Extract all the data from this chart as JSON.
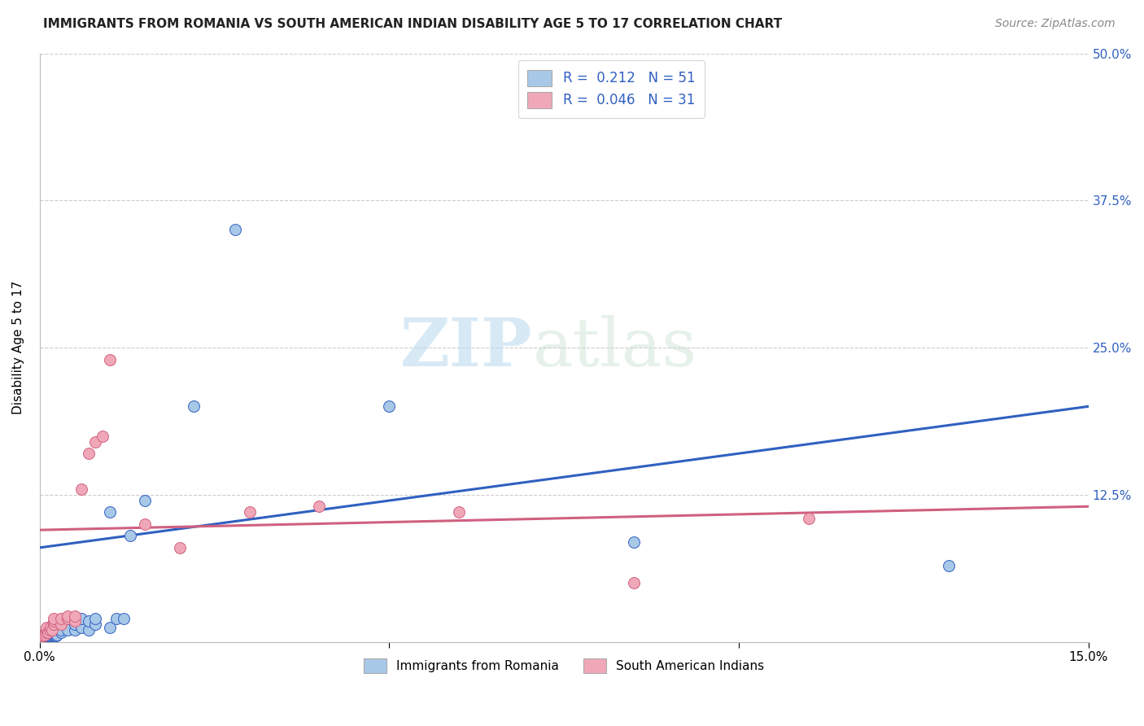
{
  "title": "IMMIGRANTS FROM ROMANIA VS SOUTH AMERICAN INDIAN DISABILITY AGE 5 TO 17 CORRELATION CHART",
  "source": "Source: ZipAtlas.com",
  "ylabel": "Disability Age 5 to 17",
  "xlim": [
    0.0,
    0.15
  ],
  "ylim": [
    0.0,
    0.5
  ],
  "xticks": [
    0.0,
    0.05,
    0.1,
    0.15
  ],
  "xticklabels": [
    "0.0%",
    "",
    "",
    "15.0%"
  ],
  "yticks": [
    0.0,
    0.125,
    0.25,
    0.375,
    0.5
  ],
  "yticklabels": [
    "",
    "12.5%",
    "25.0%",
    "37.5%",
    "50.0%"
  ],
  "color_romania": "#a8c8e8",
  "color_sa_indian": "#f0a8b8",
  "line_color_romania": "#3060c0",
  "line_color_sa_indian": "#d06080",
  "background_color": "#ffffff",
  "watermark_zip": "ZIP",
  "watermark_atlas": "atlas",
  "romania_x": [
    0.0003,
    0.0004,
    0.0005,
    0.0006,
    0.0007,
    0.0008,
    0.0009,
    0.001,
    0.001,
    0.001,
    0.001,
    0.0012,
    0.0013,
    0.0014,
    0.0015,
    0.0015,
    0.0016,
    0.0017,
    0.0018,
    0.0019,
    0.002,
    0.002,
    0.002,
    0.002,
    0.0022,
    0.0024,
    0.0025,
    0.003,
    0.003,
    0.003,
    0.004,
    0.004,
    0.005,
    0.005,
    0.006,
    0.006,
    0.007,
    0.007,
    0.008,
    0.008,
    0.01,
    0.01,
    0.011,
    0.012,
    0.013,
    0.015,
    0.022,
    0.028,
    0.05,
    0.085,
    0.13
  ],
  "romania_y": [
    0.005,
    0.005,
    0.005,
    0.005,
    0.005,
    0.006,
    0.005,
    0.005,
    0.006,
    0.007,
    0.008,
    0.005,
    0.005,
    0.005,
    0.006,
    0.007,
    0.005,
    0.006,
    0.005,
    0.006,
    0.006,
    0.007,
    0.008,
    0.01,
    0.005,
    0.005,
    0.006,
    0.008,
    0.01,
    0.018,
    0.01,
    0.02,
    0.01,
    0.015,
    0.012,
    0.02,
    0.01,
    0.018,
    0.015,
    0.02,
    0.012,
    0.11,
    0.02,
    0.02,
    0.09,
    0.12,
    0.2,
    0.35,
    0.2,
    0.085,
    0.065
  ],
  "sa_indian_x": [
    0.0003,
    0.0005,
    0.0007,
    0.0009,
    0.001,
    0.001,
    0.0012,
    0.0014,
    0.0016,
    0.0018,
    0.002,
    0.002,
    0.002,
    0.003,
    0.003,
    0.004,
    0.004,
    0.005,
    0.005,
    0.006,
    0.007,
    0.008,
    0.009,
    0.01,
    0.015,
    0.02,
    0.03,
    0.04,
    0.06,
    0.085,
    0.11
  ],
  "sa_indian_y": [
    0.005,
    0.005,
    0.006,
    0.008,
    0.01,
    0.012,
    0.008,
    0.01,
    0.012,
    0.01,
    0.015,
    0.018,
    0.02,
    0.015,
    0.02,
    0.02,
    0.022,
    0.018,
    0.022,
    0.13,
    0.16,
    0.17,
    0.175,
    0.24,
    0.1,
    0.08,
    0.11,
    0.115,
    0.11,
    0.05,
    0.105
  ],
  "romania_line_x": [
    0.0,
    0.15
  ],
  "romania_line_y": [
    0.08,
    0.2
  ],
  "sa_line_x": [
    0.0,
    0.15
  ],
  "sa_line_y": [
    0.095,
    0.115
  ]
}
